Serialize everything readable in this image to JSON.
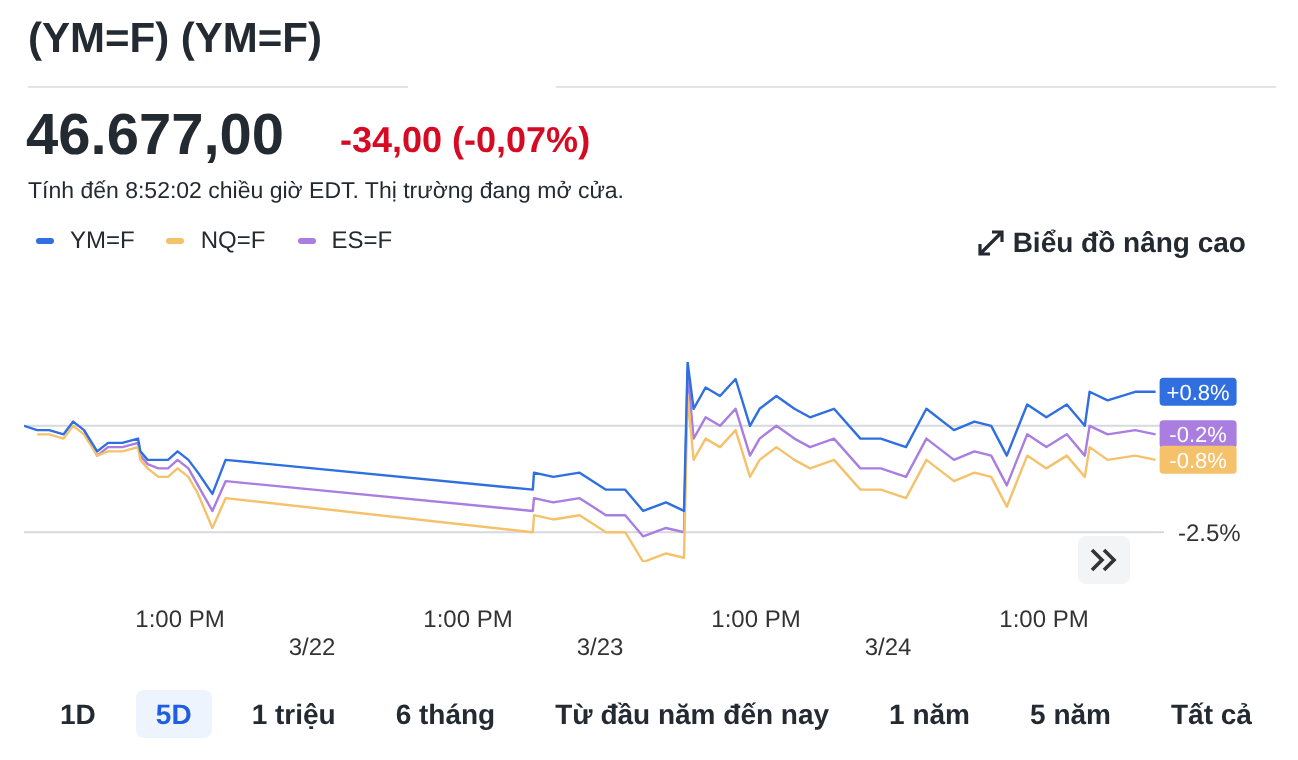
{
  "chart_data": {
    "type": "line",
    "title": "(YM=F) (YM=F)",
    "annotations": [
      "46.677,00",
      "-34,00 (-0,07%)",
      "Tính đến 8:52:02 chiều giờ EDT. Thị trường đang mở cửa.",
      "Biểu đồ nâng cao",
      "1D",
      "5D",
      "1 triệu",
      "6 tháng",
      "Từ đầu năm đến nay",
      "1 năm",
      "5 năm",
      "Tất cả",
      "3/22",
      "3/23",
      "3/24"
    ],
    "x": [
      "--03-21T00:00",
      "--03-21T01:06",
      "--03-21T02:06",
      "--03-21T03:18",
      "--03-21T04:06",
      "--03-21T05:00",
      "--03-21T06:06",
      "--03-21T07:00",
      "--03-21T08:12",
      "--03-21T09:30",
      "--03-21T09:42",
      "--03-21T10:18",
      "--03-21T11:12",
      "--03-21T12:00",
      "--03-21T12:48",
      "--03-21T13:42",
      "--03-21T14:30",
      "--03-21T15:42",
      "--03-21T16:48",
      "--03-22T18:24",
      "--03-22T18:30",
      "--03-22T20:06",
      "--03-22T22:18",
      "--03-23T00:30",
      "--03-23T02:06",
      "--03-23T03:36",
      "--03-23T05:30",
      "--03-23T07:00",
      "--03-23T07:18",
      "--03-23T07:48",
      "--03-23T08:48",
      "--03-23T10:00",
      "--03-23T11:18",
      "--03-23T12:30",
      "--03-23T13:18",
      "--03-23T14:42",
      "--03-23T16:12",
      "--03-23T17:30",
      "--03-23T19:30",
      "--03-23T21:42",
      "--03-23T23:24",
      "--03-24T01:30",
      "--03-24T03:12",
      "--03-24T05:30",
      "--03-24T07:12",
      "--03-24T08:36",
      "--03-24T09:54",
      "--03-24T11:36",
      "--03-24T13:12",
      "--03-24T14:54",
      "--03-24T16:24",
      "--03-24T16:48",
      "--03-24T18:18",
      "--03-24T20:36",
      "--03-24T22:18"
    ],
    "series": [
      {
        "name": "YM=F",
        "color": "#2f6fe0",
        "values": [
          0.0,
          -0.1,
          -0.1,
          -0.2,
          0.1,
          -0.1,
          -0.6,
          -0.4,
          -0.4,
          -0.3,
          -0.6,
          -0.8,
          -0.8,
          -0.8,
          -0.6,
          -0.8,
          -1.1,
          -1.6,
          -0.8,
          -1.5,
          -1.1,
          -1.2,
          -1.1,
          -1.5,
          -1.5,
          -2.0,
          -1.8,
          -2.0,
          1.5,
          0.4,
          0.9,
          0.7,
          1.1,
          0.0,
          0.4,
          0.7,
          0.4,
          0.2,
          0.4,
          -0.3,
          -0.3,
          -0.5,
          0.4,
          -0.1,
          0.1,
          0.0,
          -0.7,
          0.5,
          0.2,
          0.5,
          0.0,
          0.8,
          0.6,
          0.8,
          0.8
        ],
        "value_labels": [
          null,
          null,
          null,
          null,
          null,
          null,
          null,
          null,
          null,
          null,
          null,
          null,
          null,
          null,
          null,
          null,
          null,
          null,
          null,
          null,
          null,
          null,
          null,
          null,
          null,
          null,
          null,
          null,
          null,
          null,
          null,
          null,
          null,
          null,
          null,
          null,
          null,
          null,
          null,
          null,
          null,
          null,
          null,
          null,
          null,
          null,
          null,
          null,
          null,
          null,
          null,
          null,
          null,
          null,
          "+0.8%"
        ]
      },
      {
        "name": "NQ=F",
        "color": "#f5c26b",
        "values": [
          null,
          -0.2,
          -0.2,
          -0.3,
          0.0,
          -0.2,
          -0.7,
          -0.6,
          -0.6,
          -0.5,
          -0.8,
          -1.0,
          -1.2,
          -1.2,
          -1.0,
          -1.2,
          -1.6,
          -2.4,
          -1.7,
          -2.5,
          -2.1,
          -2.2,
          -2.1,
          -2.5,
          -2.5,
          -3.2,
          -3.0,
          -3.1,
          0.7,
          -0.8,
          -0.3,
          -0.5,
          -0.1,
          -1.2,
          -0.8,
          -0.5,
          -0.8,
          -1.0,
          -0.8,
          -1.5,
          -1.5,
          -1.7,
          -0.8,
          -1.3,
          -1.1,
          -1.2,
          -1.9,
          -0.7,
          -1.0,
          -0.7,
          -1.2,
          -0.5,
          -0.8,
          -0.7,
          -0.8
        ],
        "value_labels": [
          null,
          null,
          null,
          null,
          null,
          null,
          null,
          null,
          null,
          null,
          null,
          null,
          null,
          null,
          null,
          null,
          null,
          null,
          null,
          null,
          null,
          null,
          null,
          null,
          null,
          null,
          null,
          null,
          null,
          null,
          null,
          null,
          null,
          null,
          null,
          null,
          null,
          null,
          null,
          null,
          null,
          null,
          null,
          null,
          null,
          null,
          null,
          null,
          null,
          null,
          null,
          null,
          null,
          null,
          "-0.8%"
        ]
      },
      {
        "name": "ES=F",
        "color": "#a97ee0",
        "values": [
          null,
          null,
          null,
          null,
          null,
          -0.1,
          -0.7,
          -0.5,
          -0.5,
          -0.4,
          -0.7,
          -0.9,
          -1.0,
          -1.0,
          -0.8,
          -1.0,
          -1.4,
          -2.0,
          -1.3,
          -2.0,
          -1.7,
          -1.8,
          -1.7,
          -2.1,
          -2.1,
          -2.6,
          -2.4,
          -2.5,
          1.3,
          -0.3,
          0.2,
          0.0,
          0.4,
          -0.7,
          -0.3,
          0.0,
          -0.3,
          -0.5,
          -0.3,
          -1.0,
          -1.0,
          -1.2,
          -0.3,
          -0.8,
          -0.6,
          -0.7,
          -1.4,
          -0.2,
          -0.5,
          -0.2,
          -0.7,
          0.0,
          -0.2,
          -0.1,
          -0.2
        ],
        "value_labels": [
          null,
          null,
          null,
          null,
          null,
          null,
          null,
          null,
          null,
          null,
          null,
          null,
          null,
          null,
          null,
          null,
          null,
          null,
          null,
          null,
          null,
          null,
          null,
          null,
          null,
          null,
          null,
          null,
          null,
          null,
          null,
          null,
          null,
          null,
          null,
          null,
          null,
          null,
          null,
          null,
          null,
          null,
          null,
          null,
          null,
          null,
          null,
          null,
          null,
          null,
          null,
          null,
          null,
          null,
          "-0.2%"
        ]
      }
    ],
    "xlim": [
      "--03-21T00:00",
      "--03-24T23:00"
    ],
    "xticks": [
      {
        "value": "--03-21T13:00",
        "label": "1:00 PM"
      },
      {
        "value": "--03-22T13:00",
        "label": "1:00 PM"
      },
      {
        "value": "--03-23T13:00",
        "label": "1:00 PM"
      },
      {
        "value": "--03-24T13:00",
        "label": "1:00 PM"
      }
    ],
    "ref_lines": [
      {
        "axis": "y",
        "value": 0,
        "color": "#d6d9dd"
      },
      {
        "axis": "y",
        "value": -2.5,
        "label": "-2.5%",
        "color": "#d6d9dd"
      }
    ],
    "legend": "top left",
    "marker": "none",
    "line_style": "solid"
  }
}
